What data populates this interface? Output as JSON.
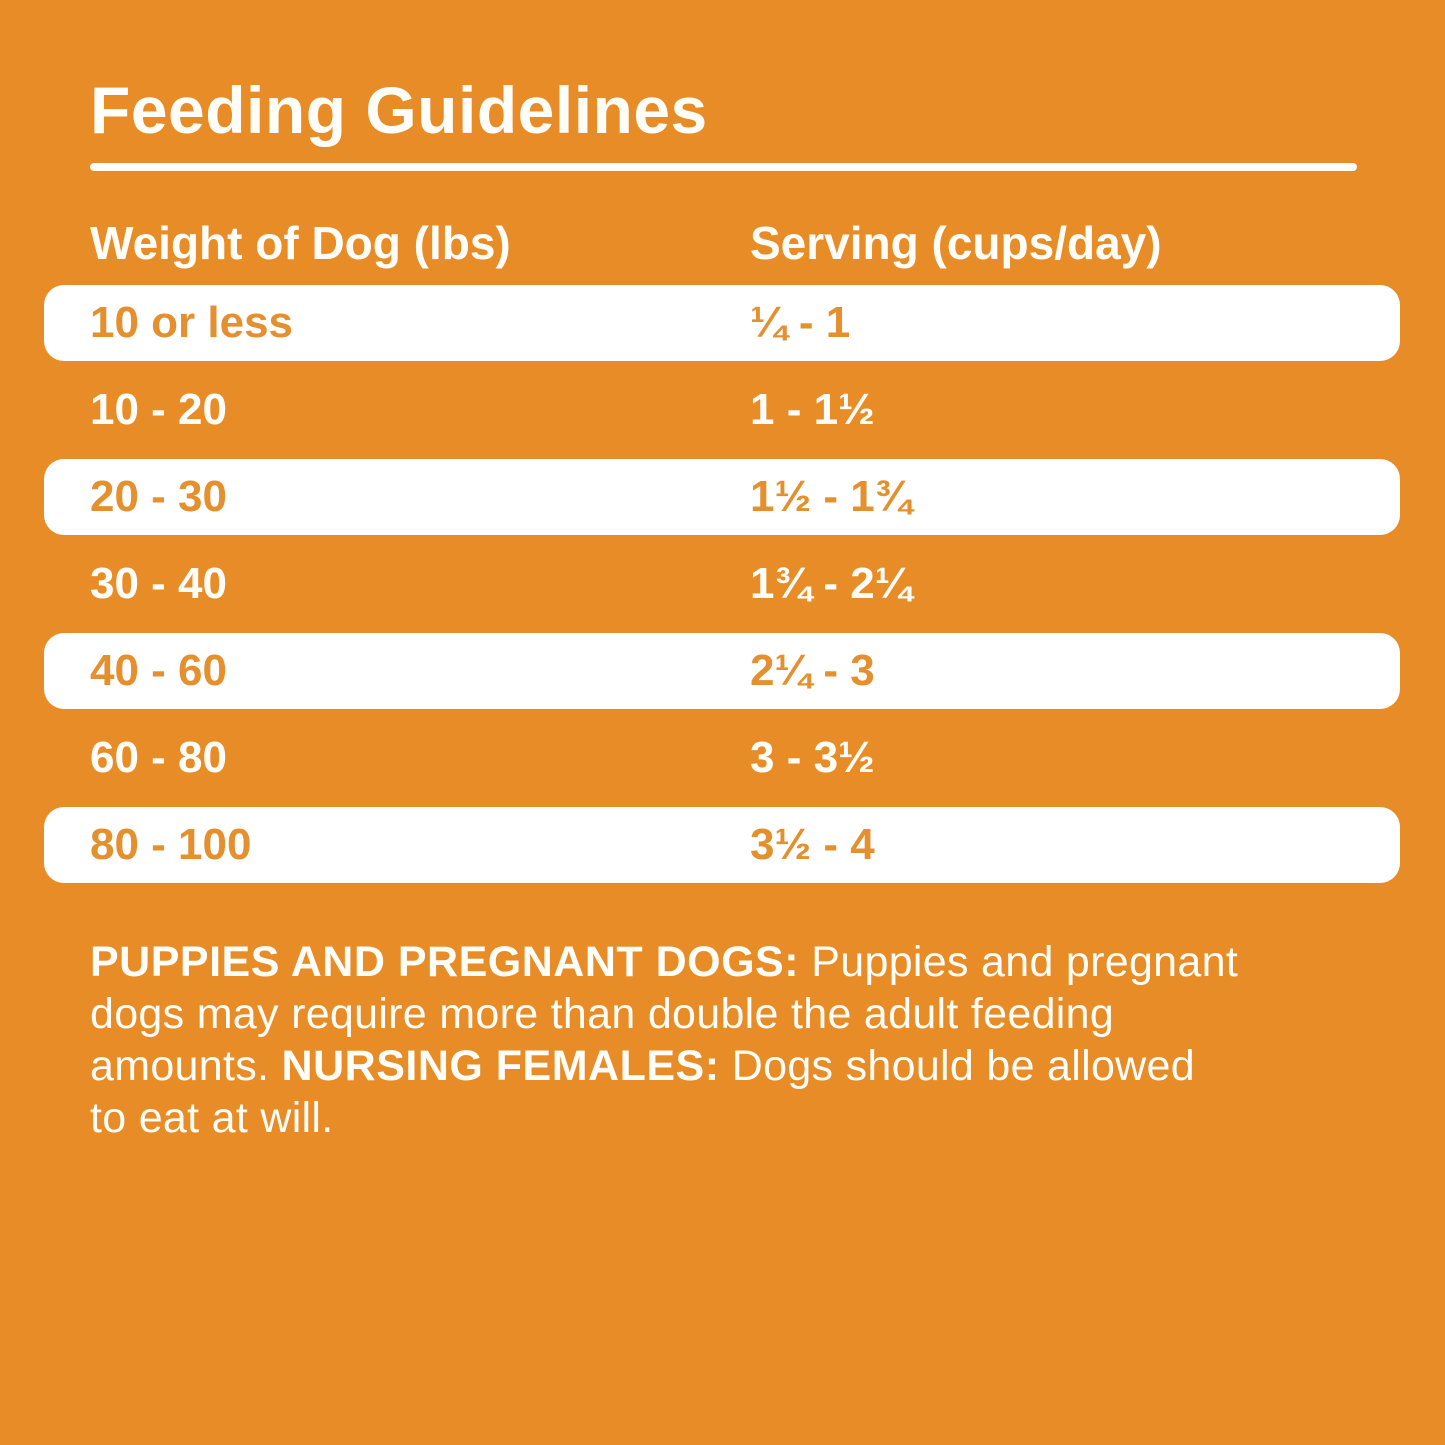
{
  "title": "Feeding Guidelines",
  "table": {
    "headers": [
      "Weight of Dog (lbs)",
      "Serving (cups/day)"
    ],
    "rows": [
      {
        "weight": "10 or less",
        "serving": "¼ - 1",
        "highlight": true
      },
      {
        "weight": "10 - 20",
        "serving": "1 - 1½",
        "highlight": false
      },
      {
        "weight": "20 - 30",
        "serving": "1½ - 1¾",
        "highlight": true
      },
      {
        "weight": "30 - 40",
        "serving": "1¾ - 2¼",
        "highlight": false
      },
      {
        "weight": "40 - 60",
        "serving": "2¼ - 3",
        "highlight": true
      },
      {
        "weight": "60 - 80",
        "serving": "3 - 3½",
        "highlight": false
      },
      {
        "weight": "80 - 100",
        "serving": "3½ - 4",
        "highlight": true
      }
    ]
  },
  "notes": {
    "lines": [
      [
        {
          "text": "PUPPIES AND PREGNANT DOGS:",
          "bold": true
        },
        {
          "text": " Puppies and pregnant",
          "bold": false
        }
      ],
      [
        {
          "text": "dogs may require more than double the adult feeding",
          "bold": false
        }
      ],
      [
        {
          "text": "amounts. ",
          "bold": false
        },
        {
          "text": "NURSING FEMALES:",
          "bold": true
        },
        {
          "text": " Dogs should be allowed",
          "bold": false
        }
      ],
      [
        {
          "text": "to eat at will.",
          "bold": false
        }
      ]
    ]
  },
  "colors": {
    "background": "#E78C26",
    "highlight_row_bg": "#FFFFFF",
    "highlight_row_text": "#E4902F",
    "text_white": "#FFFDF8"
  }
}
